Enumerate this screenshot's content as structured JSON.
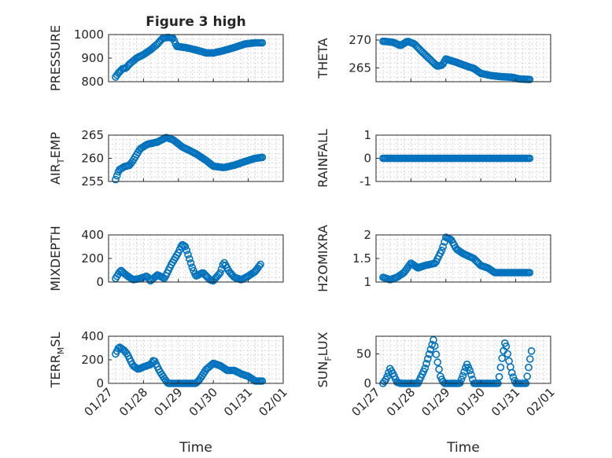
{
  "chart_data": {
    "type": "scatter",
    "figure_title": "Figure 3 high",
    "marker_color": "#0072BD",
    "x_ticks": [
      "01/27",
      "01/28",
      "01/29",
      "01/30",
      "01/31",
      "02/01"
    ],
    "x_tick_values": [
      0,
      1,
      2,
      3,
      4,
      5
    ],
    "x_label": "Time",
    "xlim": [
      0,
      5
    ],
    "subplots": [
      {
        "id": "pressure",
        "title": "Figure 3 high",
        "ylabel": "PRESSURE",
        "ylabel_main": "PRESSURE",
        "ylabel_sub": "",
        "ylabel_tail": "",
        "ylim": [
          800,
          1000
        ],
        "yticks": [
          800,
          900,
          1000
        ],
        "show_xticks": false,
        "show_xlabel": false,
        "keypoints": [
          [
            0.2,
            820
          ],
          [
            0.3,
            840
          ],
          [
            0.4,
            855
          ],
          [
            0.5,
            858
          ],
          [
            0.6,
            875
          ],
          [
            0.8,
            900
          ],
          [
            1.0,
            915
          ],
          [
            1.2,
            935
          ],
          [
            1.4,
            960
          ],
          [
            1.55,
            985
          ],
          [
            1.7,
            988
          ],
          [
            1.85,
            985
          ],
          [
            1.95,
            950
          ],
          [
            2.2,
            945
          ],
          [
            2.5,
            935
          ],
          [
            2.8,
            922
          ],
          [
            3.0,
            922
          ],
          [
            3.3,
            932
          ],
          [
            3.6,
            945
          ],
          [
            3.9,
            960
          ],
          [
            4.2,
            965
          ],
          [
            4.4,
            965
          ]
        ]
      },
      {
        "id": "theta",
        "title": "",
        "ylabel": "THETA",
        "ylabel_main": "THETA",
        "ylabel_sub": "",
        "ylabel_tail": "",
        "ylim": [
          262.5,
          271
        ],
        "yticks": [
          265,
          270
        ],
        "show_xticks": false,
        "show_xlabel": false,
        "keypoints": [
          [
            0.2,
            269.8
          ],
          [
            0.5,
            269.6
          ],
          [
            0.7,
            269.0
          ],
          [
            0.9,
            269.8
          ],
          [
            1.1,
            269.3
          ],
          [
            1.3,
            268.0
          ],
          [
            1.5,
            266.8
          ],
          [
            1.75,
            265.3
          ],
          [
            1.9,
            265.5
          ],
          [
            2.0,
            266.6
          ],
          [
            2.3,
            266.0
          ],
          [
            2.6,
            265.3
          ],
          [
            2.8,
            264.9
          ],
          [
            3.0,
            264.0
          ],
          [
            3.3,
            263.6
          ],
          [
            3.6,
            263.4
          ],
          [
            3.9,
            263.3
          ],
          [
            4.1,
            263.0
          ],
          [
            4.4,
            262.9
          ]
        ]
      },
      {
        "id": "air_temp",
        "title": "",
        "ylabel": "AIR_TEMP",
        "ylabel_main": "AIR",
        "ylabel_sub": "T",
        "ylabel_tail": "EMP",
        "ylim": [
          255,
          265
        ],
        "yticks": [
          255,
          260,
          265
        ],
        "show_xticks": false,
        "show_xlabel": false,
        "keypoints": [
          [
            0.2,
            255.4
          ],
          [
            0.3,
            257.5
          ],
          [
            0.45,
            258.2
          ],
          [
            0.6,
            258.5
          ],
          [
            0.7,
            259.5
          ],
          [
            0.9,
            262.0
          ],
          [
            1.1,
            263.0
          ],
          [
            1.4,
            263.5
          ],
          [
            1.65,
            264.5
          ],
          [
            1.85,
            264.0
          ],
          [
            2.1,
            262.5
          ],
          [
            2.5,
            261.0
          ],
          [
            2.8,
            259.5
          ],
          [
            3.0,
            258.3
          ],
          [
            3.3,
            258.0
          ],
          [
            3.6,
            258.5
          ],
          [
            3.9,
            259.3
          ],
          [
            4.2,
            260.0
          ],
          [
            4.4,
            260.2
          ]
        ]
      },
      {
        "id": "rainfall",
        "title": "",
        "ylabel": "RAINFALL",
        "ylabel_main": "RAINFALL",
        "ylabel_sub": "",
        "ylabel_tail": "",
        "ylim": [
          -1,
          1
        ],
        "yticks": [
          -1,
          0,
          1
        ],
        "show_xticks": false,
        "show_xlabel": false,
        "keypoints": [
          [
            0.2,
            0
          ],
          [
            4.4,
            0
          ]
        ]
      },
      {
        "id": "mixdepth",
        "title": "",
        "ylabel": "MIXDEPTH",
        "ylabel_main": "MIXDEPTH",
        "ylabel_sub": "",
        "ylabel_tail": "",
        "ylim": [
          0,
          400
        ],
        "yticks": [
          0,
          200,
          400
        ],
        "show_xticks": false,
        "show_xlabel": false,
        "keypoints": [
          [
            0.2,
            30
          ],
          [
            0.35,
            100
          ],
          [
            0.5,
            60
          ],
          [
            0.7,
            20
          ],
          [
            0.9,
            30
          ],
          [
            1.1,
            50
          ],
          [
            1.2,
            10
          ],
          [
            1.4,
            60
          ],
          [
            1.6,
            30
          ],
          [
            1.8,
            150
          ],
          [
            2.0,
            250
          ],
          [
            2.1,
            320
          ],
          [
            2.2,
            300
          ],
          [
            2.4,
            120
          ],
          [
            2.5,
            50
          ],
          [
            2.7,
            80
          ],
          [
            2.9,
            20
          ],
          [
            3.0,
            10
          ],
          [
            3.2,
            80
          ],
          [
            3.3,
            170
          ],
          [
            3.45,
            90
          ],
          [
            3.6,
            40
          ],
          [
            3.8,
            20
          ],
          [
            4.0,
            50
          ],
          [
            4.2,
            90
          ],
          [
            4.35,
            150
          ]
        ]
      },
      {
        "id": "h2omixra",
        "title": "",
        "ylabel": "H2OMIXRA",
        "ylabel_main": "H2OMIXRA",
        "ylabel_sub": "",
        "ylabel_tail": "",
        "ylim": [
          1,
          2
        ],
        "yticks": [
          1,
          1.5,
          2
        ],
        "show_xticks": false,
        "show_xlabel": false,
        "keypoints": [
          [
            0.2,
            1.1
          ],
          [
            0.4,
            1.05
          ],
          [
            0.6,
            1.1
          ],
          [
            0.8,
            1.2
          ],
          [
            1.0,
            1.4
          ],
          [
            1.2,
            1.3
          ],
          [
            1.4,
            1.35
          ],
          [
            1.7,
            1.4
          ],
          [
            1.9,
            1.7
          ],
          [
            2.0,
            1.95
          ],
          [
            2.15,
            1.9
          ],
          [
            2.3,
            1.7
          ],
          [
            2.5,
            1.6
          ],
          [
            2.8,
            1.5
          ],
          [
            3.0,
            1.35
          ],
          [
            3.2,
            1.3
          ],
          [
            3.4,
            1.2
          ],
          [
            4.4,
            1.2
          ]
        ]
      },
      {
        "id": "terr_msl",
        "title": "",
        "ylabel": "TERR_MSL",
        "ylabel_main": "TERR",
        "ylabel_sub": "M",
        "ylabel_tail": "SL",
        "ylim": [
          0,
          400
        ],
        "yticks": [
          0,
          200,
          400
        ],
        "show_xticks": true,
        "show_xlabel": true,
        "keypoints": [
          [
            0.2,
            250
          ],
          [
            0.3,
            310
          ],
          [
            0.45,
            280
          ],
          [
            0.55,
            240
          ],
          [
            0.7,
            150
          ],
          [
            0.85,
            120
          ],
          [
            1.0,
            140
          ],
          [
            1.2,
            160
          ],
          [
            1.3,
            200
          ],
          [
            1.45,
            110
          ],
          [
            1.6,
            40
          ],
          [
            1.7,
            0
          ],
          [
            2.5,
            0
          ],
          [
            2.6,
            30
          ],
          [
            2.8,
            120
          ],
          [
            3.0,
            170
          ],
          [
            3.2,
            150
          ],
          [
            3.4,
            110
          ],
          [
            3.6,
            110
          ],
          [
            3.8,
            80
          ],
          [
            4.0,
            60
          ],
          [
            4.2,
            20
          ],
          [
            4.4,
            20
          ]
        ]
      },
      {
        "id": "sun_flux",
        "title": "",
        "ylabel": "SUN_FLUX",
        "ylabel_main": "SUN",
        "ylabel_sub": "F",
        "ylabel_tail": "LUX",
        "ylim": [
          0,
          80
        ],
        "yticks": [
          0,
          50
        ],
        "show_xticks": true,
        "show_xlabel": true,
        "keypoints": [
          [
            0.2,
            0
          ],
          [
            0.3,
            8
          ],
          [
            0.4,
            25
          ],
          [
            0.5,
            15
          ],
          [
            0.6,
            2
          ],
          [
            0.7,
            0
          ],
          [
            1.2,
            0
          ],
          [
            1.4,
            25
          ],
          [
            1.55,
            55
          ],
          [
            1.65,
            75
          ],
          [
            1.75,
            40
          ],
          [
            1.85,
            10
          ],
          [
            1.95,
            0
          ],
          [
            2.4,
            0
          ],
          [
            2.5,
            15
          ],
          [
            2.6,
            33
          ],
          [
            2.7,
            20
          ],
          [
            2.8,
            0
          ],
          [
            3.5,
            0
          ],
          [
            3.6,
            40
          ],
          [
            3.7,
            72
          ],
          [
            3.8,
            40
          ],
          [
            3.9,
            15
          ],
          [
            4.0,
            0
          ],
          [
            4.3,
            0
          ],
          [
            4.35,
            20
          ],
          [
            4.4,
            38
          ],
          [
            4.45,
            55
          ]
        ]
      }
    ]
  }
}
